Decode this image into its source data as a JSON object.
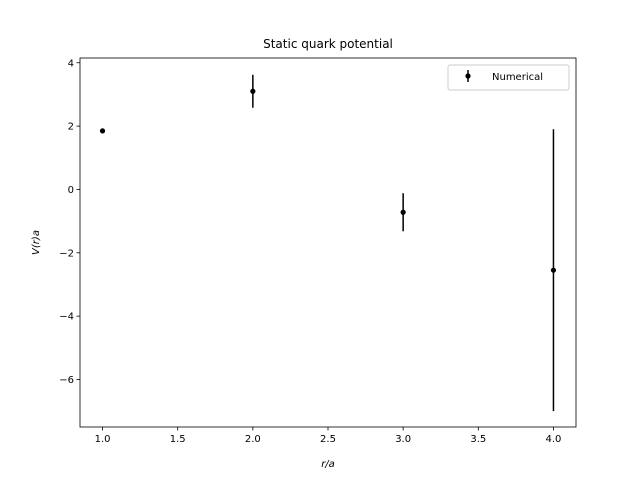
{
  "chart_data": {
    "type": "scatter",
    "title": "Static quark potential",
    "xlabel": "r/a",
    "ylabel": "V(r)a",
    "xlim": [
      0.85,
      4.15
    ],
    "ylim": [
      -7.5,
      4.15
    ],
    "xticks": [
      1.0,
      1.5,
      2.0,
      2.5,
      3.0,
      3.5,
      4.0
    ],
    "xtick_labels": [
      "1.0",
      "1.5",
      "2.0",
      "2.5",
      "3.0",
      "3.5",
      "4.0"
    ],
    "yticks": [
      -6,
      -4,
      -2,
      0,
      2,
      4
    ],
    "ytick_labels": [
      "−6",
      "−4",
      "−2",
      "0",
      "2",
      "4"
    ],
    "grid": false,
    "legend_position": "top-right",
    "series": [
      {
        "name": "Numerical",
        "color": "#000000",
        "marker": "dot",
        "x": [
          1.0,
          2.0,
          3.0,
          4.0
        ],
        "y": [
          1.85,
          3.1,
          -0.72,
          -2.55
        ],
        "yerr": [
          0.02,
          0.52,
          0.6,
          4.45
        ]
      }
    ]
  }
}
